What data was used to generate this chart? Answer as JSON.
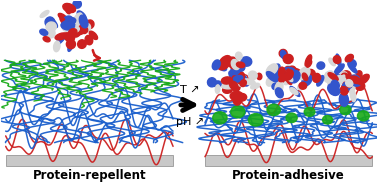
{
  "bg_color": "#ffffff",
  "left_label": "Protein-repellent",
  "right_label": "Protein-adhesive",
  "arrow_label_top": "T ↗",
  "arrow_label_bottom": "pH ↗",
  "substrate_color": "#c8c8c8",
  "blue_color": "#1a5fcc",
  "red_color": "#cc2020",
  "green_color": "#18aa18",
  "protein_red": "#cc2020",
  "protein_blue": "#3355cc",
  "protein_white": "#d8d8d8",
  "label_fontsize": 8.5,
  "label_fontweight": "bold"
}
